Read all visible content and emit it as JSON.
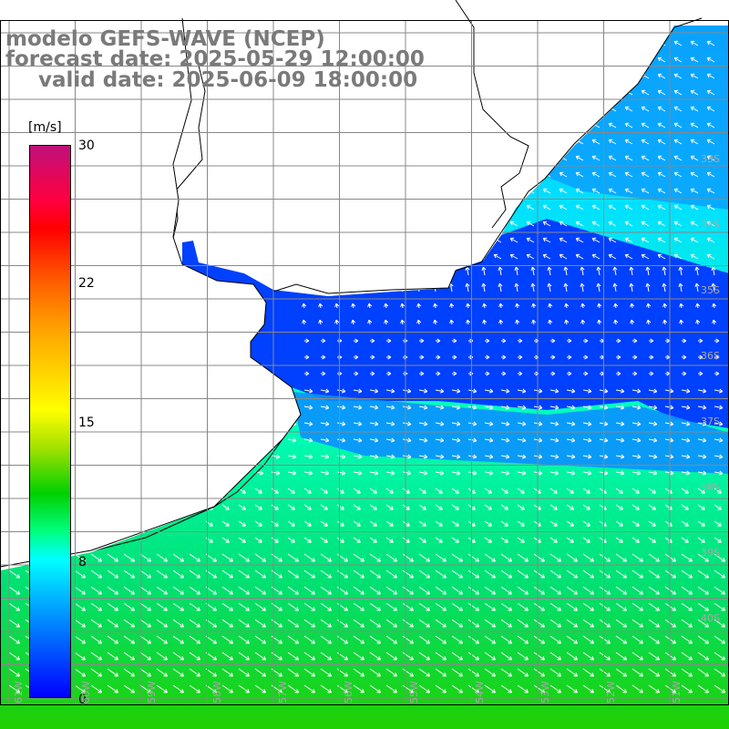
{
  "title": {
    "model": "modelo GEFS-WAVE (NCEP)",
    "forecast": "forecast date: 2025-05-29 12:00:00",
    "valid": "valid date: 2025-06-09 18:00:00"
  },
  "colorbar": {
    "unit": "[m/s]",
    "ticks": [
      "30",
      "22",
      "15",
      "8",
      "0"
    ],
    "range": [
      0,
      30
    ]
  },
  "axes": {
    "lat_labels": [
      "33S",
      "34S",
      "35S",
      "36S",
      "37S",
      "38S",
      "39S",
      "40S"
    ],
    "lon_labels": [
      "61W",
      "60W",
      "59W",
      "58W",
      "57W",
      "56W",
      "55W",
      "54W",
      "53W",
      "52W",
      "51W"
    ]
  },
  "colors": {
    "land": "#ffffff",
    "coastline": "#000000",
    "grid": "#888888",
    "title": "#7a7a7a",
    "arrows": "#ffffff"
  },
  "field": {
    "variable": "wind speed",
    "arrow_direction": "towards north-west in the north, eastward around 36S, south-east in the south"
  }
}
